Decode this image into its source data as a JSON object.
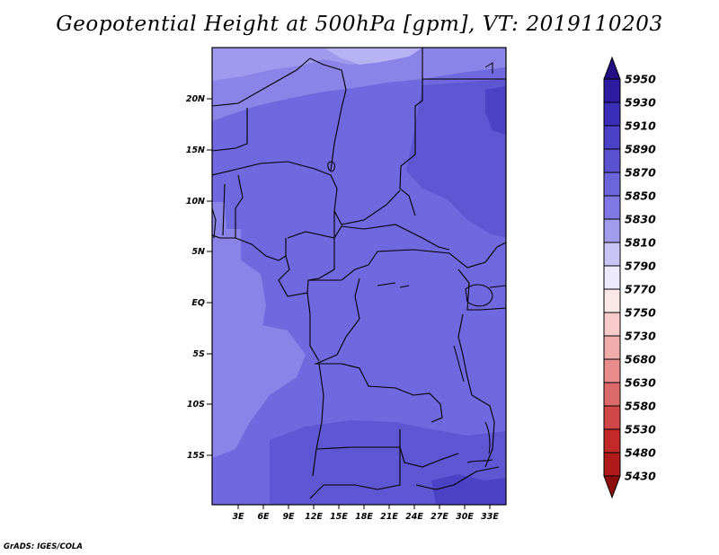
{
  "title": "Geopotential Height at 500hPa [gpm], VT: 2019110203",
  "credit": "GrADS: IGES/COLA",
  "map": {
    "lat_labels": [
      "20N",
      "15N",
      "10N",
      "5N",
      "EQ",
      "5S",
      "10S",
      "15S"
    ],
    "lon_labels": [
      "3E",
      "6E",
      "9E",
      "12E",
      "15E",
      "18E",
      "21E",
      "24E",
      "27E",
      "30E",
      "33E"
    ]
  },
  "colorbar": {
    "levels": [
      "5950",
      "5930",
      "5910",
      "5890",
      "5870",
      "5850",
      "5830",
      "5810",
      "5790",
      "5770",
      "5750",
      "5730",
      "5680",
      "5630",
      "5580",
      "5530",
      "5480",
      "5430"
    ],
    "colors": [
      "#240f83",
      "#2d1aa0",
      "#3a2db8",
      "#4b40c8",
      "#5b52d2",
      "#6c66dc",
      "#8078e4",
      "#a29ced",
      "#c9c5f6",
      "#ebe9fb",
      "#fde8e8",
      "#f9cccc",
      "#f1acac",
      "#e88c8c",
      "#dd6a6a",
      "#d24848",
      "#c22a2a",
      "#b01a1a",
      "#8c0e0e"
    ]
  }
}
